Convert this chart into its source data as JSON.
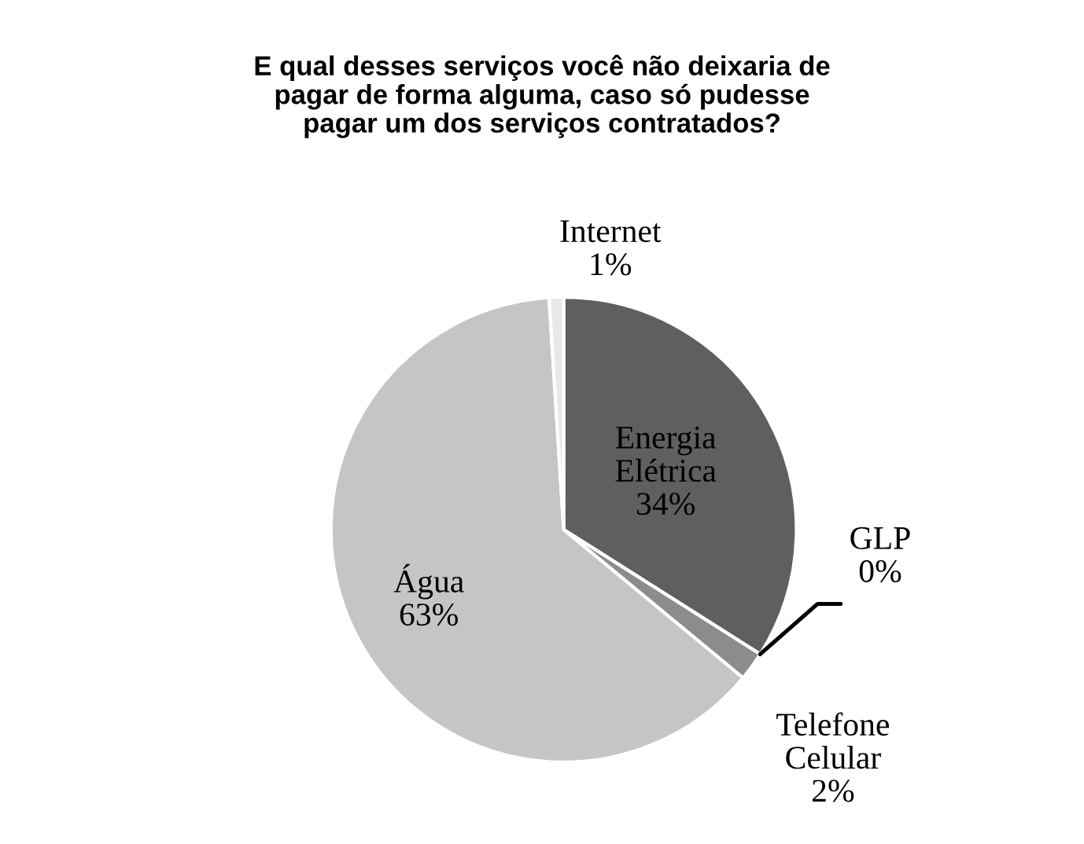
{
  "chart_data": {
    "type": "pie",
    "title": "E qual desses serviços você não deixaria de\npagar de forma alguma, caso só pudesse\npagar um dos serviços contratados?",
    "categories": [
      "Energia Elétrica",
      "GLP",
      "Telefone Celular",
      "Água",
      "Internet"
    ],
    "values": [
      34,
      0,
      2,
      63,
      1
    ],
    "value_labels": [
      "34%",
      "0%",
      "2%",
      "63%",
      "1%"
    ],
    "colors": [
      "#5d5f61",
      "#ffffff",
      "#8c8c8c",
      "#c4c5c5",
      "#e8e8e8"
    ]
  }
}
